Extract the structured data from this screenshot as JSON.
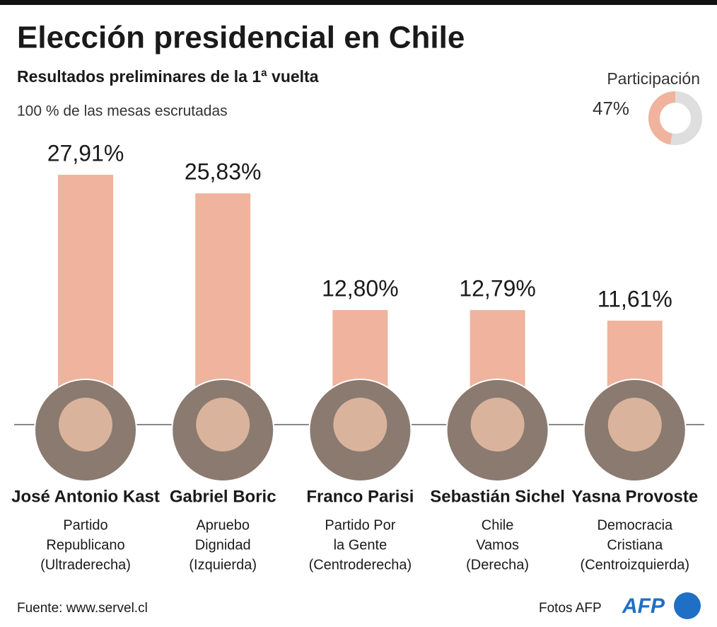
{
  "chart_data": {
    "type": "bar",
    "title": "Elección presidencial en Chile",
    "subtitle": "Resultados preliminares de la 1ª vuelta",
    "note": "100 % de las mesas escrutadas",
    "categories": [
      "José Antonio Kast",
      "Gabriel Boric",
      "Franco Parisi",
      "Sebastián Sichel",
      "Yasna Provoste"
    ],
    "parties": [
      [
        "Partido",
        "Republicano",
        "(Ultraderecha)"
      ],
      [
        "Apruebo",
        "Dignidad",
        "(Izquierda)"
      ],
      [
        "Partido Por",
        "la Gente",
        "(Centroderecha)"
      ],
      [
        "Chile",
        "Vamos",
        "(Derecha)"
      ],
      [
        "Democracia",
        "Cristiana",
        "(Centroizquierda)"
      ]
    ],
    "values": [
      27.91,
      25.83,
      12.8,
      12.79,
      11.61
    ],
    "value_labels": [
      "27,91%",
      "25,83%",
      "12,80%",
      "12,79%",
      "11,61%"
    ],
    "color": "#f0b39d",
    "participation": {
      "label": "Participación",
      "value": 47,
      "value_label": "47%",
      "color": "#f0b39d",
      "rest_color": "#dedede"
    },
    "source": "Fuente: www.servel.cl",
    "credit": "Fotos AFP",
    "logo": "AFP"
  }
}
